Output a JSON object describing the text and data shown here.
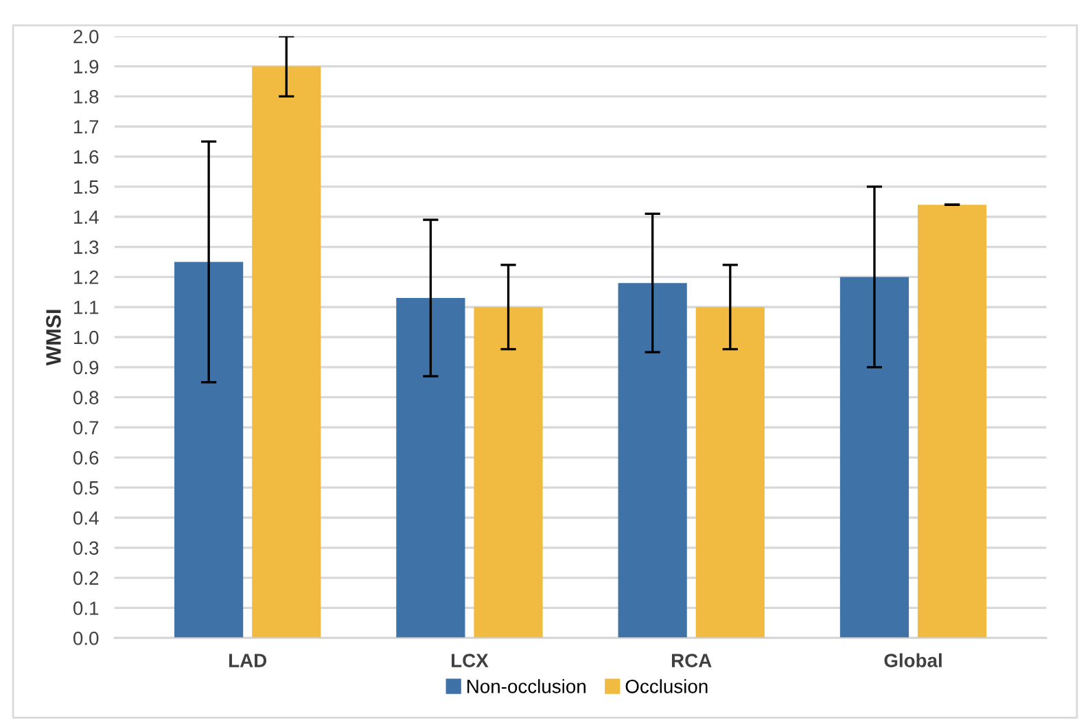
{
  "chart_data": {
    "type": "bar",
    "ylabel": "WMSI",
    "categories": [
      "LAD",
      "LCX",
      "RCA",
      "Global"
    ],
    "series": [
      {
        "name": "Non-occlusion",
        "color": "#3f72a6",
        "values": [
          1.25,
          1.13,
          1.18,
          1.2
        ],
        "errors": [
          0.4,
          0.26,
          0.23,
          0.3
        ]
      },
      {
        "name": "Occlusion",
        "color": "#f0bb40",
        "values": [
          1.9,
          1.1,
          1.1,
          1.44
        ],
        "errors": [
          0.1,
          0.14,
          0.14,
          0
        ]
      }
    ],
    "ylim": [
      0,
      2.0
    ],
    "yticks": [
      {
        "value": 0,
        "label": "0.0"
      },
      {
        "value": 0.1,
        "label": "0.1"
      },
      {
        "value": 0.2,
        "label": "0.2"
      },
      {
        "value": 0.3,
        "label": "0.3"
      },
      {
        "value": 0.4,
        "label": "0.4"
      },
      {
        "value": 0.5,
        "label": "0.5"
      },
      {
        "value": 0.6,
        "label": "0.6"
      },
      {
        "value": 0.7,
        "label": "0.7"
      },
      {
        "value": 0.8,
        "label": "0.8"
      },
      {
        "value": 0.9,
        "label": "0.9"
      },
      {
        "value": 1.0,
        "label": "1.0"
      },
      {
        "value": 1.1,
        "label": "1.1"
      },
      {
        "value": 1.2,
        "label": "1.2"
      },
      {
        "value": 1.3,
        "label": "1.3"
      },
      {
        "value": 1.4,
        "label": "1.4"
      },
      {
        "value": 1.5,
        "label": "1.5"
      },
      {
        "value": 1.6,
        "label": "1.6"
      },
      {
        "value": 1.7,
        "label": "1.7"
      },
      {
        "value": 1.8,
        "label": "1.8"
      },
      {
        "value": 1.9,
        "label": "1.9"
      },
      {
        "value": 2.0,
        "label": "2.0"
      }
    ],
    "grid": "y",
    "legend": "bottom"
  }
}
